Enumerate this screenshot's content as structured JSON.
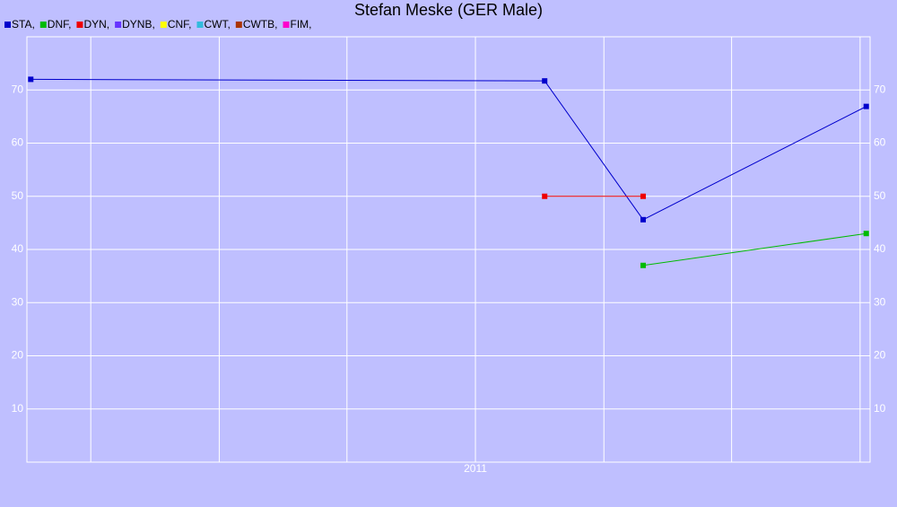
{
  "chart_data": {
    "type": "line",
    "title": "Stefan Meske (GER Male)",
    "xlim": [
      2010.417,
      2011.513
    ],
    "xticks": [
      {
        "value": 2010.5,
        "label": null
      },
      {
        "value": 2010.667,
        "label": null
      },
      {
        "value": 2010.833,
        "label": null
      },
      {
        "value": 2011,
        "label": "2011"
      },
      {
        "value": 2011.167,
        "label": null
      },
      {
        "value": 2011.333,
        "label": null
      },
      {
        "value": 2011.5,
        "label": null
      }
    ],
    "ylim": [
      0,
      80
    ],
    "yticks": [
      10,
      20,
      30,
      40,
      50,
      60,
      70
    ],
    "grid": true,
    "series": [
      {
        "name": "STA,",
        "color": "#0000cc",
        "x": [
          2010.422,
          2011.09,
          2011.218,
          2011.508
        ],
        "values": [
          72,
          71.7,
          45.6,
          66.9
        ]
      },
      {
        "name": "DNF,",
        "color": "#00bb00",
        "x": [
          2011.218,
          2011.508
        ],
        "values": [
          37,
          43
        ]
      },
      {
        "name": "DYN,",
        "color": "#ee0000",
        "x": [
          2011.09,
          2011.218
        ],
        "values": [
          50,
          50
        ]
      },
      {
        "name": "DYNB,",
        "color": "#6633ff",
        "x": [],
        "values": []
      },
      {
        "name": "CNF,",
        "color": "#ffff00",
        "x": [],
        "values": []
      },
      {
        "name": "CWT,",
        "color": "#33bbdd",
        "x": [],
        "values": []
      },
      {
        "name": "CWTB,",
        "color": "#aa3300",
        "x": [],
        "values": []
      },
      {
        "name": "FIM,",
        "color": "#ff00cc",
        "x": [],
        "values": []
      }
    ]
  }
}
